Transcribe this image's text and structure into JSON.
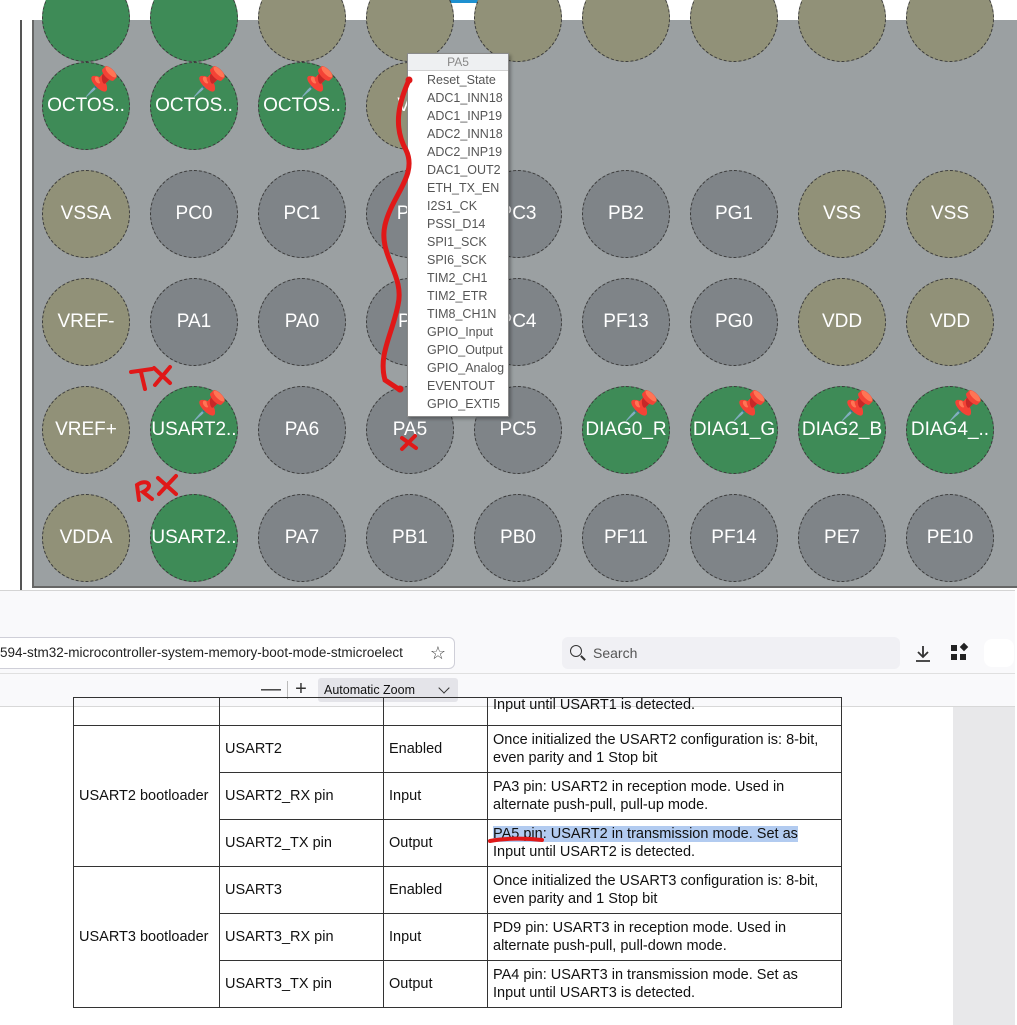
{
  "pinout": {
    "pins": [
      {
        "label": "",
        "color": "green",
        "pinned": false
      },
      {
        "label": "",
        "color": "green",
        "pinned": false
      },
      {
        "label": "",
        "color": "olive",
        "pinned": false
      },
      {
        "label": "",
        "color": "olive",
        "pinned": false
      },
      {
        "label": "",
        "color": "olive",
        "pinned": false
      },
      {
        "label": "",
        "color": "olive",
        "pinned": false
      },
      {
        "label": "",
        "color": "olive",
        "pinned": false
      },
      {
        "label": "",
        "color": "olive",
        "pinned": false
      },
      {
        "label": "",
        "color": "olive",
        "pinned": false
      },
      {
        "label": "OCTOS..",
        "color": "green",
        "pinned": true
      },
      {
        "label": "OCTOS..",
        "color": "green",
        "pinned": true
      },
      {
        "label": "OCTOS..",
        "color": "green",
        "pinned": true
      },
      {
        "label": "VS",
        "color": "olive",
        "pinned": false
      },
      {
        "label": "VSSA",
        "color": "olive",
        "pinned": false
      },
      {
        "label": "PC0",
        "color": "gray",
        "pinned": false
      },
      {
        "label": "PC1",
        "color": "gray",
        "pinned": false
      },
      {
        "label": "PC",
        "color": "gray",
        "pinned": false
      },
      {
        "label": "PC3",
        "color": "gray",
        "pinned": false
      },
      {
        "label": "PB2",
        "color": "gray",
        "pinned": false
      },
      {
        "label": "PG1",
        "color": "gray",
        "pinned": false
      },
      {
        "label": "VSS",
        "color": "olive",
        "pinned": false
      },
      {
        "label": "VSS",
        "color": "olive",
        "pinned": false
      },
      {
        "label": "VREF-",
        "color": "olive",
        "pinned": false
      },
      {
        "label": "PA1",
        "color": "gray",
        "pinned": false
      },
      {
        "label": "PA0",
        "color": "gray",
        "pinned": false
      },
      {
        "label": "PA",
        "color": "gray",
        "pinned": false
      },
      {
        "label": "PC4",
        "color": "gray",
        "pinned": false
      },
      {
        "label": "PF13",
        "color": "gray",
        "pinned": false
      },
      {
        "label": "PG0",
        "color": "gray",
        "pinned": false
      },
      {
        "label": "VDD",
        "color": "olive",
        "pinned": false
      },
      {
        "label": "VDD",
        "color": "olive",
        "pinned": false
      },
      {
        "label": "VREF+",
        "color": "olive",
        "pinned": false
      },
      {
        "label": "USART2..",
        "color": "green",
        "pinned": true
      },
      {
        "label": "PA6",
        "color": "gray",
        "pinned": false
      },
      {
        "label": "PA5",
        "color": "gray",
        "pinned": false
      },
      {
        "label": "PC5",
        "color": "gray",
        "pinned": false
      },
      {
        "label": "DIAG0_R",
        "color": "green",
        "pinned": true
      },
      {
        "label": "DIAG1_G",
        "color": "green",
        "pinned": true
      },
      {
        "label": "DIAG2_B",
        "color": "green",
        "pinned": true
      },
      {
        "label": "DIAG4_..",
        "color": "green",
        "pinned": true
      },
      {
        "label": "VDDA",
        "color": "olive",
        "pinned": false
      },
      {
        "label": "USART2..",
        "color": "green",
        "pinned": false
      },
      {
        "label": "PA7",
        "color": "gray",
        "pinned": false
      },
      {
        "label": "PB1",
        "color": "gray",
        "pinned": false
      },
      {
        "label": "PB0",
        "color": "gray",
        "pinned": false
      },
      {
        "label": "PF11",
        "color": "gray",
        "pinned": false
      },
      {
        "label": "PF14",
        "color": "gray",
        "pinned": false
      },
      {
        "label": "PE7",
        "color": "gray",
        "pinned": false
      },
      {
        "label": "PE10",
        "color": "gray",
        "pinned": false
      }
    ],
    "popup": {
      "title": "PA5",
      "items": [
        "Reset_State",
        "ADC1_INN18",
        "ADC1_INP19",
        "ADC2_INN18",
        "ADC2_INP19",
        "DAC1_OUT2",
        "ETH_TX_EN",
        "I2S1_CK",
        "PSSI_D14",
        "SPI1_SCK",
        "SPI6_SCK",
        "TIM2_CH1",
        "TIM2_ETR",
        "TIM8_CH1N",
        "GPIO_Input",
        "GPIO_Output",
        "GPIO_Analog",
        "EVENTOUT",
        "GPIO_EXTI5"
      ]
    }
  },
  "browser": {
    "url": "594-stm32-microcontroller-system-memory-boot-mode-stmicroelect",
    "search_placeholder": "Search",
    "zoom_minus": "—",
    "zoom_plus": "+",
    "zoom_value": "Automatic Zoom"
  },
  "doc": {
    "prev_row_tail": "Input until USART1 is detected.",
    "groups": [
      {
        "name": "USART2 bootloader",
        "rows": [
          {
            "signal": "USART2",
            "state": "Enabled",
            "lines": [
              "Once initialized the USART2 configuration is: 8-bit,",
              "even parity and 1 Stop bit"
            ]
          },
          {
            "signal": "USART2_RX pin",
            "state": "Input",
            "lines": [
              "PA3 pin: USART2 in reception mode. Used in",
              "alternate push-pull, pull-up mode."
            ]
          },
          {
            "signal": "USART2_TX pin",
            "state": "Output",
            "lines": [
              "PA5 pin: USART2 in transmission mode. Set as",
              "Input until USART2 is detected."
            ]
          }
        ]
      },
      {
        "name": "USART3 bootloader",
        "rows": [
          {
            "signal": "USART3",
            "state": "Enabled",
            "lines": [
              "Once initialized the USART3 configuration is: 8-bit,",
              "even parity and 1 Stop bit"
            ]
          },
          {
            "signal": "USART3_RX pin",
            "state": "Input",
            "lines": [
              "PD9 pin: USART3 in reception mode. Used in",
              "alternate push-pull, pull-down mode."
            ]
          },
          {
            "signal": "USART3_TX pin",
            "state": "Output",
            "lines": [
              "PA4 pin: USART3 in transmission mode. Set as",
              "Input until USART3 is detected."
            ]
          }
        ]
      }
    ]
  }
}
